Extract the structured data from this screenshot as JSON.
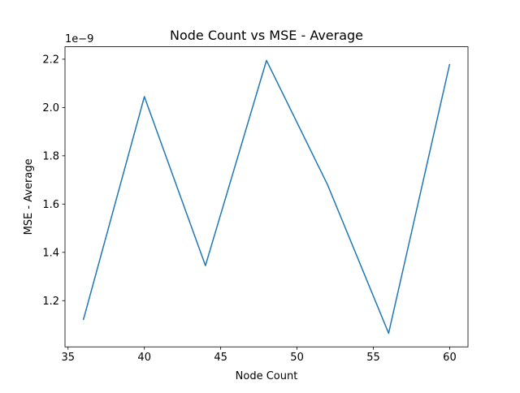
{
  "chart_data": {
    "type": "line",
    "title": "Node Count vs MSE - Average",
    "xlabel": "Node Count",
    "ylabel": "MSE - Average",
    "y_offset_label": "1e−9",
    "x": [
      36,
      40,
      44,
      48,
      52,
      56,
      60
    ],
    "series": [
      {
        "values": [
          1.12,
          2.045,
          1.345,
          2.195,
          1.68,
          1.065,
          2.18
        ],
        "color": "#1f77b4"
      }
    ],
    "xlim": [
      34.8,
      61.2
    ],
    "ylim": [
      1.0085,
      2.2515
    ],
    "x_ticks": [
      35,
      40,
      45,
      50,
      55,
      60
    ],
    "x_tick_labels": [
      "35",
      "40",
      "45",
      "50",
      "55",
      "60"
    ],
    "y_ticks": [
      1.2,
      1.4,
      1.6,
      1.8,
      2.0,
      2.2
    ],
    "y_tick_labels": [
      "1.2",
      "1.4",
      "1.6",
      "1.8",
      "2.0",
      "2.2"
    ],
    "grid": false,
    "legend": null
  }
}
